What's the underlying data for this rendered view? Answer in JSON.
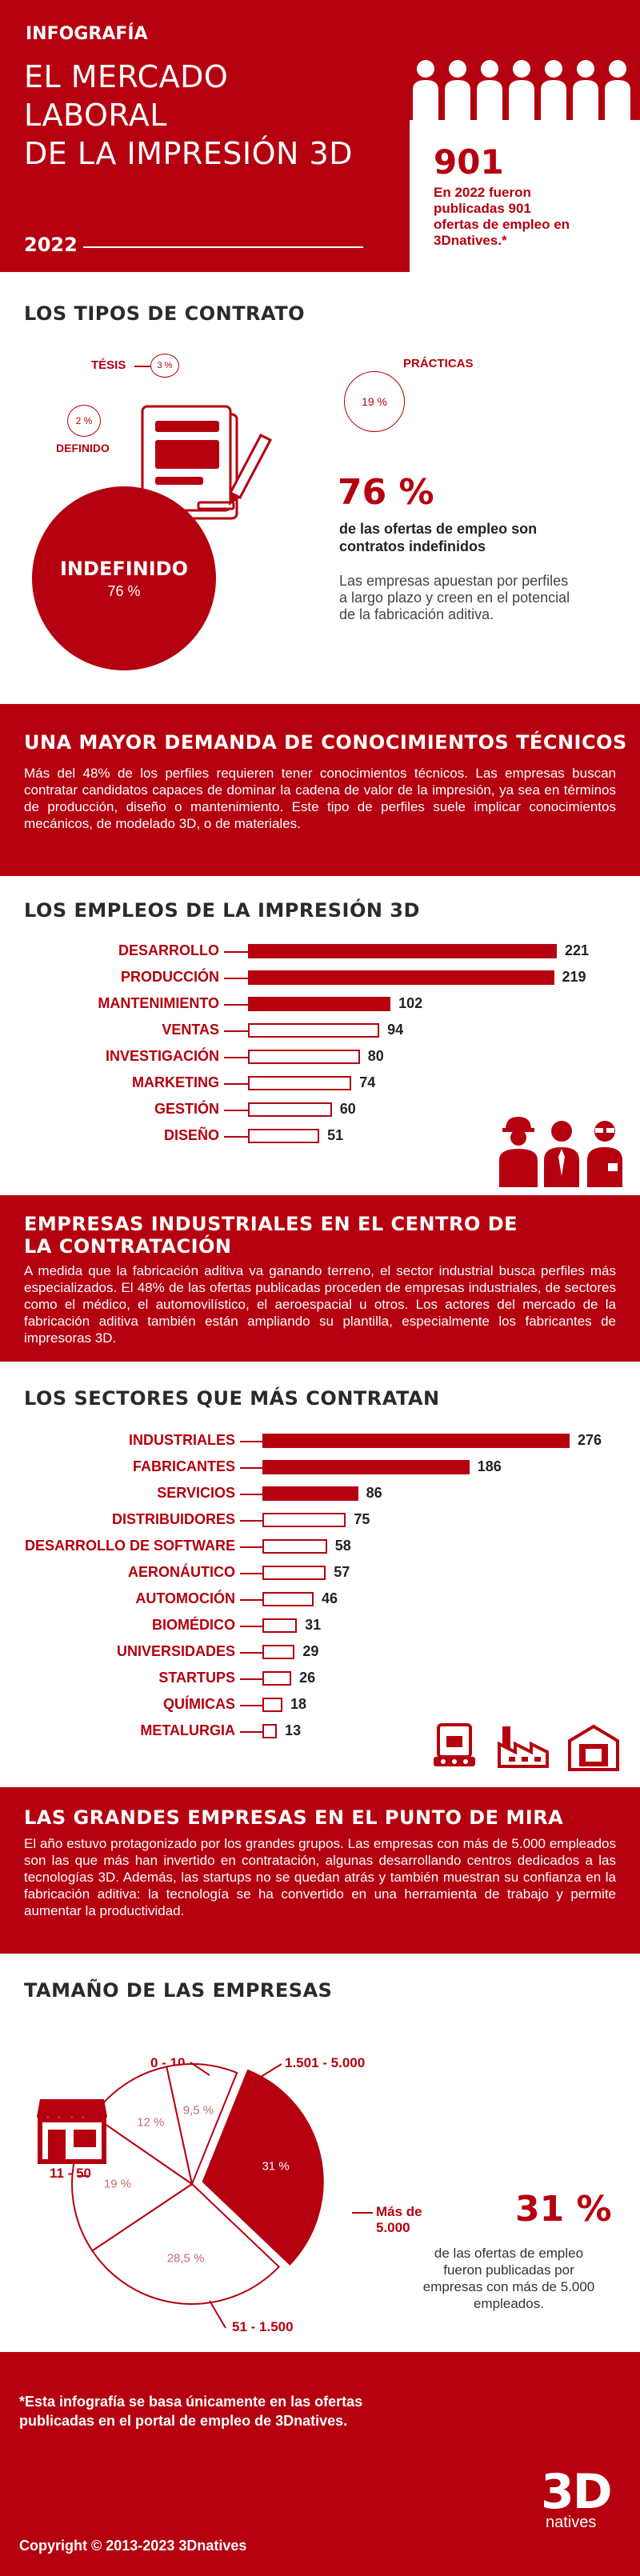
{
  "header": {
    "kicker": "INFOGRAFÍA",
    "title_lines": [
      "EL MERCADO",
      "LABORAL",
      "DE LA IMPRESIÓN 3D"
    ],
    "year": "2022",
    "stat_number": "901",
    "stat_text": "En 2022 fueron publicadas 901 ofertas de empleo en 3Dnatives.*"
  },
  "contract": {
    "title": "LOS TIPOS DE CONTRATO",
    "tesis_label": "TÉSIS",
    "tesis_pct": "3 %",
    "practicas_label": "PRÁCTICAS",
    "practicas_pct": "19 %",
    "definido_label": "DEFINIDO",
    "definido_pct": "2 %",
    "indefinido_label": "INDEFINIDO",
    "indefinido_pct": "76 %",
    "headline_pct": "76 %",
    "headline_label": "de las ofertas de empleo son contratos indefinidos",
    "description": "Las empresas apuestan por perfiles a largo plazo y creen en el potencial de la fabricación aditiva."
  },
  "demand": {
    "title": "UNA MAYOR DEMANDA DE CONOCIMIENTOS TÉCNICOS",
    "text": "Más del 48% de los perfiles requieren tener conocimientos técnicos. Las empresas buscan contratar candidatos capaces de dominar la cadena de valor de la impresión, ya sea en términos de producción, diseño o mantenimiento. Este tipo de perfiles suele implicar conocimientos mecánicos, de modelado 3D, o de materiales."
  },
  "industrial": {
    "title_lines": [
      "EMPRESAS INDUSTRIALES EN EL CENTRO DE",
      "LA CONTRATACIÓN"
    ],
    "text": "A medida que la fabricación aditiva va ganando terreno, el sector industrial busca perfiles más especializados. El 48% de las ofertas publicadas proceden de empresas industriales, de sectores como el médico, el automovilístico, el aeroespacial u otros. Los actores del mercado de la fabricación aditiva también están ampliando su plantilla, especialmente los fabricantes de impresoras 3D."
  },
  "big": {
    "title": "LAS GRANDES EMPRESAS EN EL PUNTO DE MIRA",
    "text": "El año estuvo protagonizado por los grandes grupos. Las empresas con más de 5.000 empleados son las que más han invertido en contratación, algunas desarrollando centros dedicados a las tecnologías 3D. Además, las startups no se quedan atrás y también muestran su confianza en la fabricación aditiva: la tecnología se ha convertido en una herramienta de trabajo y permite aumentar la productividad."
  },
  "size": {
    "headline_pct": "31 %",
    "headline_text": "de las ofertas de empleo fueron publicadas por empresas con más de 5.000 empleados."
  },
  "footer": {
    "footnote": "*Esta infografía se basa únicamente en las ofertas publicadas en el portal de empleo de 3Dnatives.",
    "copyright": "Copyright © 2013-2023 3Dnatives",
    "logo_main": "3D",
    "logo_sub": "natives"
  },
  "colors": {
    "brand": "#b5000f",
    "white": "#ffffff"
  },
  "chart_data": [
    {
      "type": "bar",
      "title": "LOS EMPLEOS DE LA IMPRESIÓN 3D",
      "categories": [
        "DESARROLLO",
        "PRODUCCIÓN",
        "MANTENIMIENTO",
        "VENTAS",
        "INVESTIGACIÓN",
        "MARKETING",
        "GESTIÓN",
        "DISEÑO"
      ],
      "values": [
        221,
        219,
        102,
        94,
        80,
        74,
        60,
        51
      ],
      "filled": [
        true,
        true,
        true,
        false,
        false,
        false,
        false,
        false
      ],
      "orientation": "horizontal"
    },
    {
      "type": "bar",
      "title": "LOS SECTORES QUE MÁS CONTRATAN",
      "categories": [
        "INDUSTRIALES",
        "FABRICANTES",
        "SERVICIOS",
        "DISTRIBUIDORES",
        "DESARROLLO DE SOFTWARE",
        "AERONÁUTICO",
        "AUTOMOCIÓN",
        "BIOMÉDICO",
        "UNIVERSIDADES",
        "STARTUPS",
        "QUÍMICAS",
        "METALURGIA"
      ],
      "values": [
        276,
        186,
        86,
        75,
        58,
        57,
        46,
        31,
        29,
        26,
        18,
        13
      ],
      "filled": [
        true,
        true,
        true,
        false,
        false,
        false,
        false,
        false,
        false,
        false,
        false,
        false
      ],
      "orientation": "horizontal"
    },
    {
      "type": "pie",
      "title": "TAMAÑO DE LAS EMPRESAS",
      "categories": [
        "Más de 5.000",
        "51 - 1.500",
        "11 - 50",
        "0 - 10",
        "1.501 - 5.000"
      ],
      "values": [
        31,
        28.5,
        19,
        12,
        9.5
      ],
      "value_labels": [
        "31 %",
        "28,5 %",
        "19 %",
        "12 %",
        "9,5 %"
      ]
    }
  ]
}
